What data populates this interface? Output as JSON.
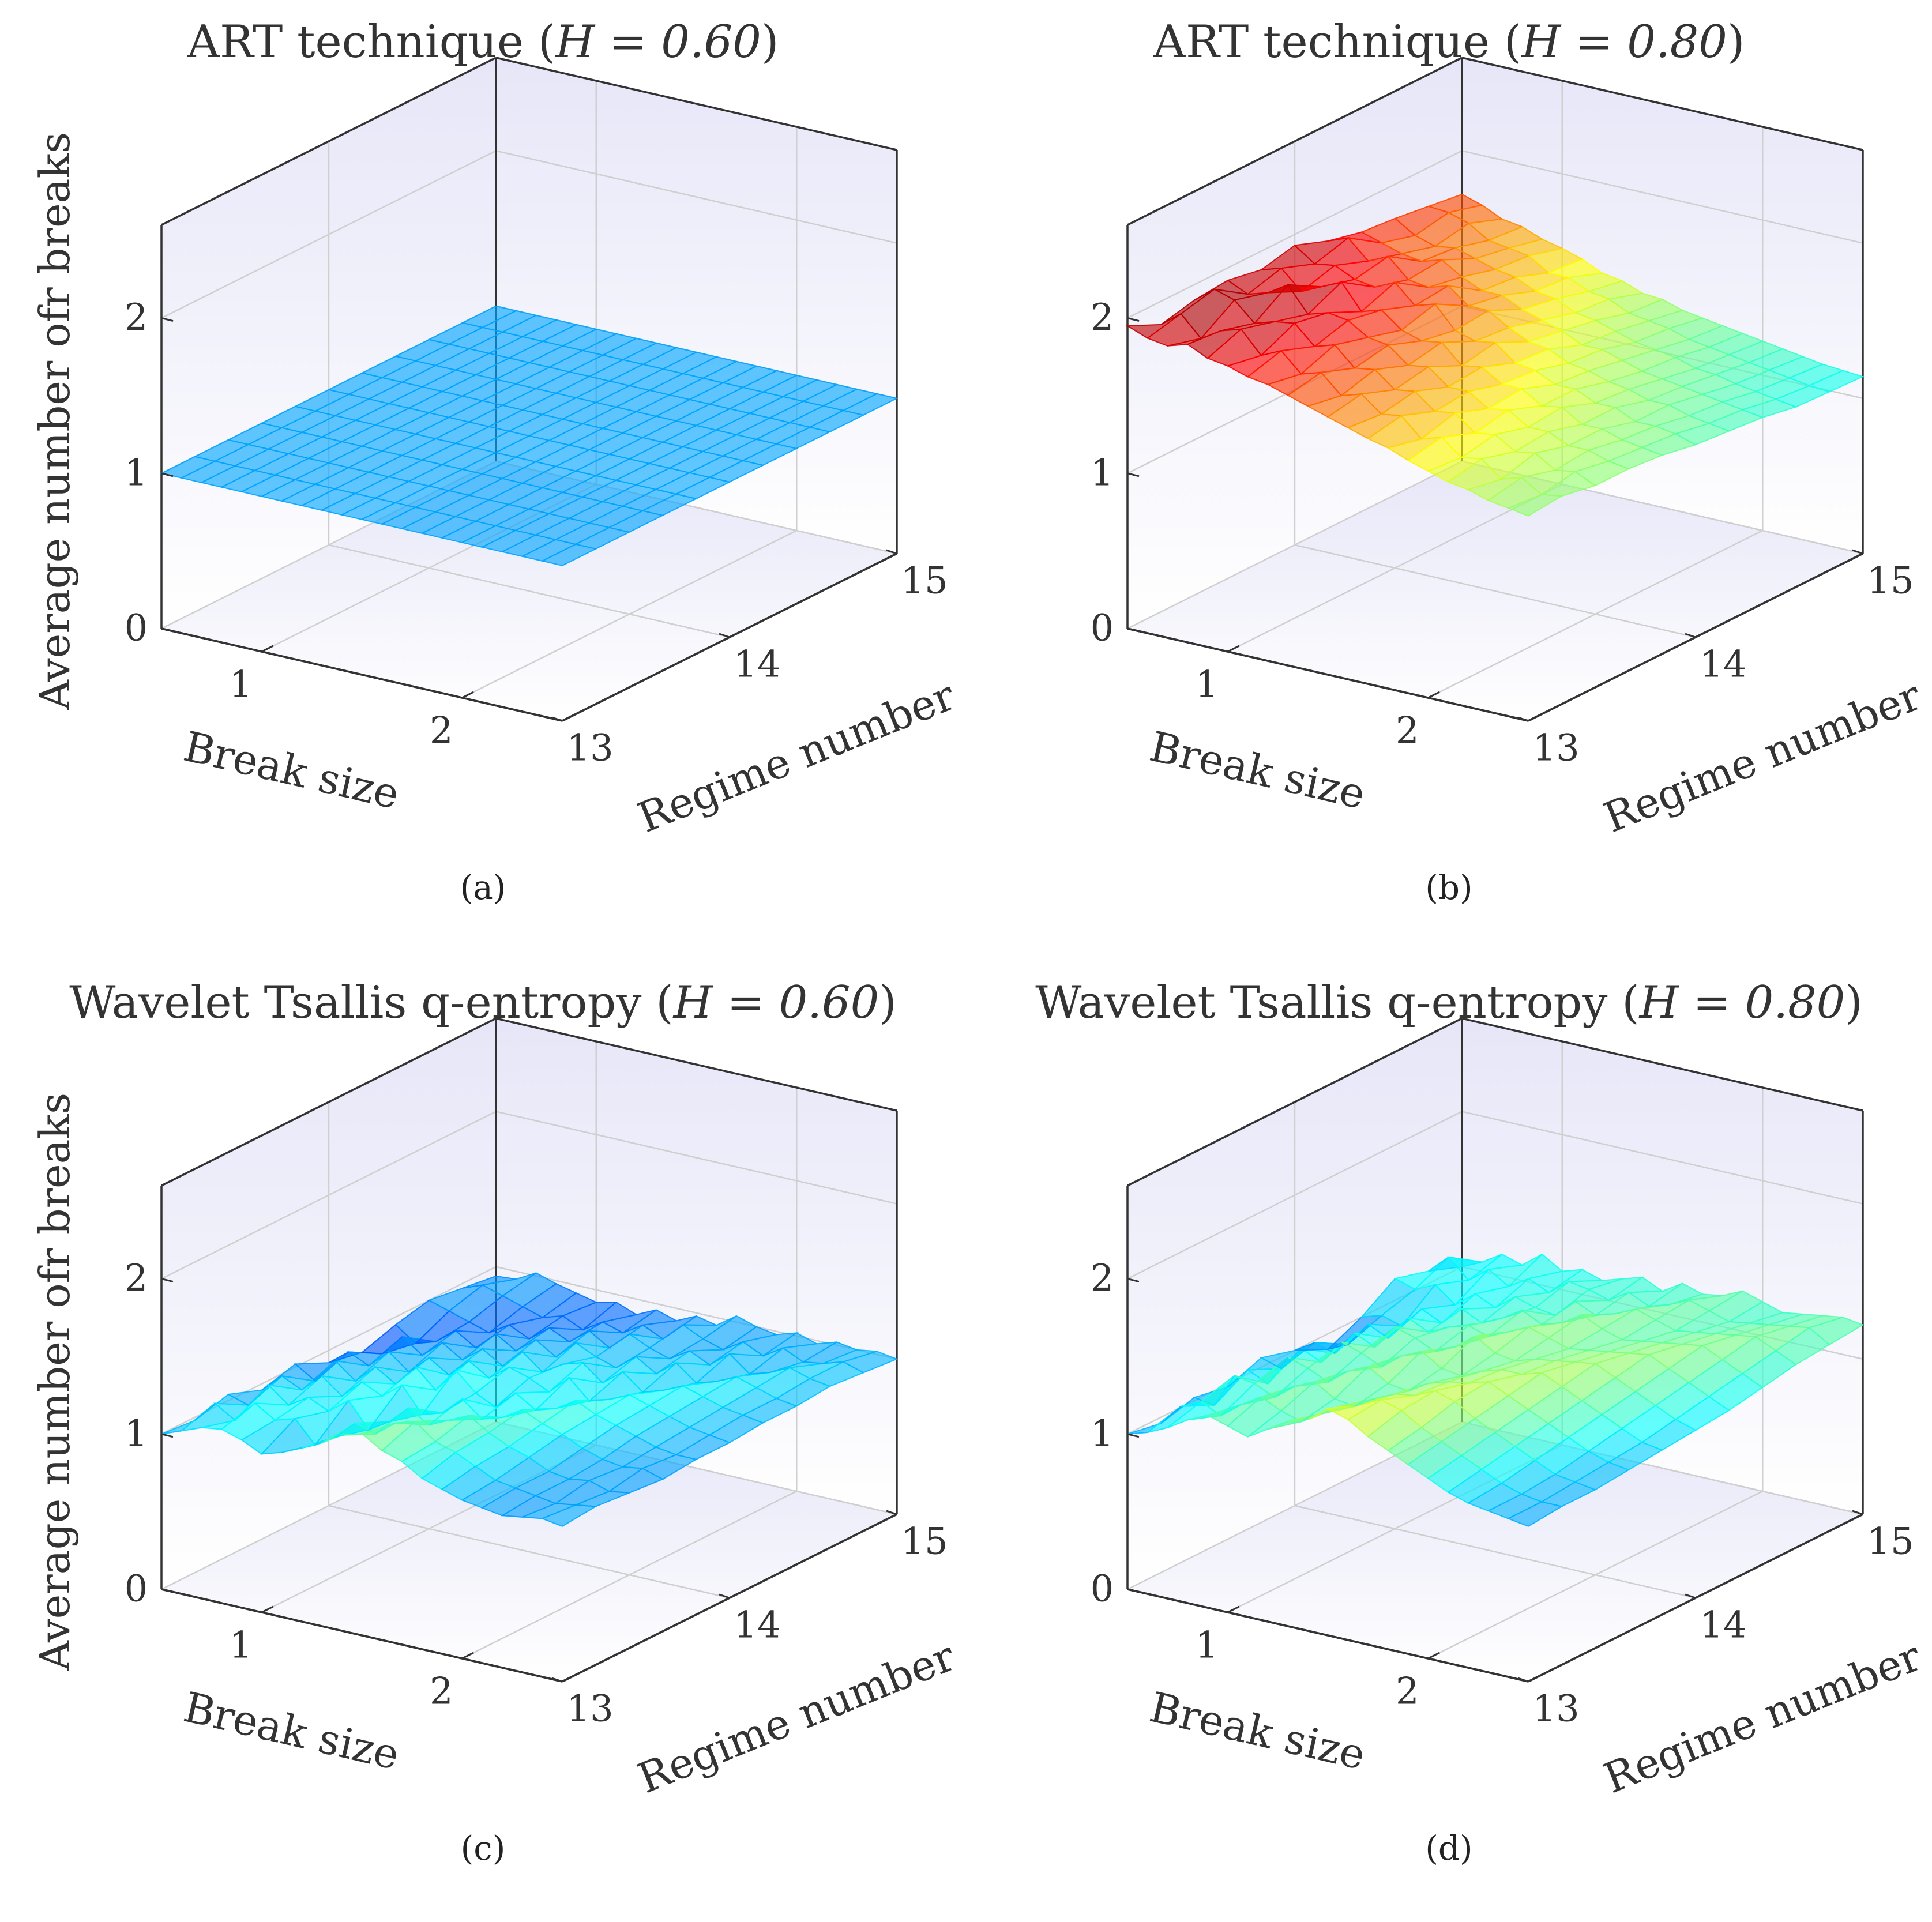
{
  "chart_data": [
    {
      "type": "surface",
      "panel": "(a)",
      "title": "ART technique",
      "title_param": "H = 0.60",
      "xlabel": "Break size",
      "ylabel": "Regime number",
      "zlabel": "Average number ofr breaks",
      "x_ticks": [
        "1",
        "2"
      ],
      "y_ticks": [
        "13",
        "14",
        "15"
      ],
      "z_ticks": [
        "0",
        "1",
        "2"
      ],
      "xlim": [
        0.5,
        2.5
      ],
      "ylim": [
        13,
        15
      ],
      "zlim": [
        0,
        2.6
      ],
      "surface_x_range": [
        0.5,
        2.5
      ],
      "surface_y_range": [
        13,
        15
      ],
      "grid": true,
      "colormap": "jet",
      "color_range": [
        0.6,
        2.0
      ],
      "values": [
        [
          1,
          1,
          1,
          1,
          1,
          1,
          1,
          1,
          1,
          1,
          1
        ],
        [
          1,
          1,
          1,
          1,
          1,
          1,
          1,
          1,
          1,
          1,
          1
        ],
        [
          1,
          1,
          1,
          1,
          1,
          1,
          1,
          1,
          1,
          1,
          1
        ],
        [
          1,
          1,
          1,
          1,
          1,
          1,
          1,
          1,
          1,
          1,
          1
        ],
        [
          1,
          1,
          1,
          1,
          1,
          1,
          1,
          1,
          1,
          1,
          1
        ],
        [
          1,
          1,
          1,
          1,
          1,
          1,
          1,
          1,
          1,
          1,
          1
        ],
        [
          1,
          1,
          1,
          1,
          1,
          1,
          1,
          1,
          1,
          1,
          1
        ],
        [
          1,
          1,
          1,
          1,
          1,
          1,
          1,
          1,
          1,
          1,
          1
        ],
        [
          1,
          1,
          1,
          1,
          1,
          1,
          1,
          1,
          1,
          1,
          1
        ],
        [
          1,
          1,
          1,
          1,
          1,
          1,
          1,
          1,
          1,
          1,
          1
        ],
        [
          1,
          1,
          1,
          1,
          1,
          1,
          1,
          1,
          1,
          1,
          1
        ],
        [
          1,
          1,
          1,
          1,
          1,
          1,
          1,
          1,
          1,
          1,
          1
        ],
        [
          1,
          1,
          1,
          1,
          1,
          1,
          1,
          1,
          1,
          1,
          1
        ],
        [
          1,
          1,
          1,
          1,
          1,
          1,
          1,
          1,
          1,
          1,
          1
        ],
        [
          1,
          1,
          1,
          1,
          1,
          1,
          1,
          1,
          1,
          1,
          1
        ],
        [
          1,
          1,
          1,
          1,
          1,
          1,
          1,
          1,
          1,
          1,
          1
        ],
        [
          1,
          1,
          1,
          1,
          1,
          1,
          1,
          1,
          1,
          1,
          1
        ],
        [
          1,
          1,
          1,
          1,
          1,
          1,
          1,
          1,
          1,
          1,
          1
        ],
        [
          1,
          1,
          1,
          1,
          1,
          1,
          1,
          1,
          1,
          1,
          1
        ],
        [
          1,
          1,
          1,
          1,
          1,
          1,
          1,
          1,
          1,
          1,
          1
        ],
        [
          1,
          1,
          1,
          1,
          1,
          1,
          1,
          1,
          1,
          1,
          1
        ]
      ]
    },
    {
      "type": "surface",
      "panel": "(b)",
      "title": "ART technique",
      "title_param": "H = 0.80",
      "xlabel": "Break size",
      "ylabel": "Regime number",
      "zlabel": "",
      "x_ticks": [
        "1",
        "2"
      ],
      "y_ticks": [
        "13",
        "14",
        "15"
      ],
      "z_ticks": [
        "0",
        "1",
        "2"
      ],
      "xlim": [
        0.5,
        2.5
      ],
      "ylim": [
        13,
        15
      ],
      "zlim": [
        0,
        2.6
      ],
      "surface_x_range": [
        0.5,
        2.5
      ],
      "surface_y_range": [
        13,
        15
      ],
      "grid": true,
      "colormap": "jet",
      "color_range": [
        0.6,
        2.0
      ],
      "values": [
        [
          1.95,
          1.85,
          1.9,
          1.92,
          1.88,
          1.93,
          1.85,
          1.8,
          1.78,
          1.75,
          1.72
        ],
        [
          1.9,
          1.95,
          2.0,
          1.86,
          1.92,
          1.84,
          1.9,
          1.76,
          1.7,
          1.74,
          1.68
        ],
        [
          1.88,
          1.82,
          1.96,
          1.9,
          1.8,
          1.86,
          1.78,
          1.72,
          1.66,
          1.7,
          1.62
        ],
        [
          1.92,
          1.9,
          1.84,
          1.98,
          1.86,
          1.8,
          1.84,
          1.7,
          1.68,
          1.62,
          1.6
        ],
        [
          1.86,
          1.94,
          1.88,
          1.82,
          1.92,
          1.78,
          1.72,
          1.74,
          1.64,
          1.6,
          1.55
        ],
        [
          1.84,
          1.8,
          1.9,
          1.86,
          1.76,
          1.84,
          1.7,
          1.66,
          1.6,
          1.58,
          1.52
        ],
        [
          1.8,
          1.86,
          1.78,
          1.84,
          1.8,
          1.72,
          1.74,
          1.6,
          1.58,
          1.5,
          1.48
        ],
        [
          1.78,
          1.74,
          1.82,
          1.76,
          1.7,
          1.76,
          1.64,
          1.6,
          1.52,
          1.5,
          1.42
        ],
        [
          1.74,
          1.78,
          1.7,
          1.74,
          1.66,
          1.62,
          1.64,
          1.54,
          1.5,
          1.44,
          1.4
        ],
        [
          1.7,
          1.66,
          1.72,
          1.64,
          1.68,
          1.58,
          1.56,
          1.5,
          1.44,
          1.42,
          1.35
        ],
        [
          1.66,
          1.7,
          1.62,
          1.66,
          1.56,
          1.6,
          1.5,
          1.46,
          1.42,
          1.36,
          1.34
        ],
        [
          1.62,
          1.6,
          1.64,
          1.56,
          1.58,
          1.5,
          1.48,
          1.4,
          1.38,
          1.34,
          1.3
        ],
        [
          1.58,
          1.62,
          1.54,
          1.56,
          1.5,
          1.48,
          1.42,
          1.4,
          1.34,
          1.32,
          1.28
        ],
        [
          1.55,
          1.5,
          1.56,
          1.48,
          1.5,
          1.42,
          1.4,
          1.36,
          1.32,
          1.28,
          1.26
        ],
        [
          1.5,
          1.54,
          1.46,
          1.5,
          1.42,
          1.42,
          1.36,
          1.32,
          1.3,
          1.26,
          1.24
        ],
        [
          1.46,
          1.44,
          1.48,
          1.42,
          1.44,
          1.36,
          1.34,
          1.3,
          1.26,
          1.24,
          1.22
        ],
        [
          1.42,
          1.46,
          1.4,
          1.42,
          1.36,
          1.36,
          1.3,
          1.28,
          1.25,
          1.22,
          1.2
        ],
        [
          1.4,
          1.36,
          1.42,
          1.36,
          1.36,
          1.3,
          1.3,
          1.26,
          1.22,
          1.2,
          1.18
        ],
        [
          1.36,
          1.4,
          1.34,
          1.36,
          1.32,
          1.3,
          1.26,
          1.24,
          1.2,
          1.18,
          1.16
        ],
        [
          1.34,
          1.32,
          1.36,
          1.32,
          1.3,
          1.28,
          1.24,
          1.22,
          1.18,
          1.16,
          1.15
        ],
        [
          1.32,
          1.34,
          1.3,
          1.3,
          1.28,
          1.24,
          1.22,
          1.2,
          1.16,
          1.15,
          1.14
        ]
      ]
    },
    {
      "type": "surface",
      "panel": "(c)",
      "title": "Wavelet Tsallis q-entropy",
      "title_param": "H = 0.60",
      "xlabel": "Break size",
      "ylabel": "Regime number",
      "zlabel": "Average number ofr breaks",
      "x_ticks": [
        "1",
        "2"
      ],
      "y_ticks": [
        "13",
        "14",
        "15"
      ],
      "z_ticks": [
        "0",
        "1",
        "2"
      ],
      "xlim": [
        0.5,
        2.5
      ],
      "ylim": [
        13,
        15
      ],
      "zlim": [
        0,
        2.6
      ],
      "surface_x_range": [
        0.5,
        2.5
      ],
      "surface_y_range": [
        13,
        15
      ],
      "grid": true,
      "colormap": "jet",
      "color_range": [
        0.6,
        2.0
      ],
      "values": [
        [
          1.0,
          0.98,
          1.04,
          0.96,
          1.02,
          0.92,
          0.88,
          0.95,
          1.0,
          0.97,
          0.94
        ],
        [
          1.05,
          1.12,
          1.0,
          1.08,
          0.94,
          1.02,
          0.9,
          0.86,
          0.96,
          1.02,
          0.95
        ],
        [
          1.1,
          1.04,
          1.16,
          1.02,
          1.1,
          0.96,
          1.04,
          0.9,
          0.92,
          0.98,
          1.02
        ],
        [
          1.12,
          1.18,
          1.06,
          1.14,
          1.0,
          1.08,
          0.95,
          1.0,
          0.88,
          0.94,
          0.98
        ],
        [
          1.08,
          1.1,
          1.14,
          1.04,
          1.12,
          0.98,
          1.06,
          0.92,
          0.96,
          0.9,
          0.95
        ],
        [
          1.02,
          1.14,
          1.08,
          1.16,
          1.04,
          1.1,
          0.98,
          1.04,
          0.9,
          0.94,
          0.92
        ],
        [
          1.06,
          1.0,
          1.18,
          1.1,
          1.18,
          1.02,
          1.08,
          0.96,
          1.0,
          0.88,
          0.95
        ],
        [
          1.12,
          1.08,
          1.02,
          1.2,
          1.06,
          1.14,
          1.0,
          1.06,
          0.94,
          0.96,
          0.9
        ],
        [
          1.18,
          1.2,
          1.1,
          1.04,
          1.22,
          1.06,
          1.12,
          0.98,
          1.04,
          0.92,
          0.96
        ],
        [
          1.26,
          1.16,
          1.22,
          1.08,
          1.1,
          1.16,
          1.02,
          1.1,
          0.96,
          1.0,
          0.92
        ],
        [
          1.3,
          1.26,
          1.14,
          1.2,
          1.04,
          1.12,
          1.1,
          1.04,
          1.08,
          0.94,
          0.98
        ],
        [
          1.22,
          1.3,
          1.2,
          1.1,
          1.16,
          1.06,
          1.14,
          1.0,
          1.02,
          1.06,
          0.95
        ],
        [
          1.18,
          1.2,
          1.26,
          1.14,
          1.08,
          1.18,
          1.04,
          1.1,
          0.98,
          1.0,
          1.04
        ],
        [
          1.1,
          1.16,
          1.18,
          1.22,
          1.12,
          1.06,
          1.14,
          1.02,
          1.06,
          0.96,
          1.0
        ],
        [
          1.06,
          1.1,
          1.12,
          1.16,
          1.2,
          1.1,
          1.04,
          1.12,
          1.0,
          1.04,
          0.98
        ],
        [
          1.02,
          1.04,
          1.08,
          1.12,
          1.14,
          1.16,
          1.08,
          1.02,
          1.1,
          0.98,
          1.02
        ],
        [
          1.0,
          1.02,
          1.02,
          1.06,
          1.1,
          1.12,
          1.14,
          1.06,
          1.0,
          1.06,
          0.98
        ],
        [
          0.98,
          1.0,
          1.0,
          1.02,
          1.06,
          1.08,
          1.1,
          1.12,
          1.04,
          1.0,
          1.02
        ],
        [
          1.0,
          0.98,
          1.02,
          1.0,
          1.02,
          1.04,
          1.06,
          1.08,
          1.1,
          1.02,
          1.0
        ],
        [
          1.02,
          1.0,
          0.98,
          1.02,
          1.0,
          1.02,
          1.04,
          1.04,
          1.06,
          1.06,
          1.02
        ],
        [
          1.0,
          1.02,
          1.0,
          0.98,
          1.0,
          1.0,
          1.02,
          1.02,
          1.04,
          1.02,
          1.0
        ]
      ]
    },
    {
      "type": "surface",
      "panel": "(d)",
      "title": "Wavelet Tsallis q-entropy",
      "title_param": "H = 0.80",
      "xlabel": "Break size",
      "ylabel": "Regime number",
      "zlabel": "",
      "x_ticks": [
        "1",
        "2"
      ],
      "y_ticks": [
        "13",
        "14",
        "15"
      ],
      "z_ticks": [
        "0",
        "1",
        "2"
      ],
      "xlim": [
        0.5,
        2.5
      ],
      "ylim": [
        13,
        15
      ],
      "zlim": [
        0,
        2.6
      ],
      "surface_x_range": [
        0.5,
        2.5
      ],
      "surface_y_range": [
        13,
        15
      ],
      "grid": true,
      "colormap": "jet",
      "color_range": [
        0.6,
        2.0
      ],
      "values": [
        [
          1.0,
          0.96,
          1.02,
          0.98,
          1.06,
          1.0,
          0.9,
          1.0,
          1.14,
          1.08,
          1.0
        ],
        [
          1.04,
          1.1,
          1.0,
          1.12,
          1.02,
          1.08,
          0.96,
          1.04,
          1.1,
          1.2,
          1.06
        ],
        [
          1.1,
          1.16,
          1.22,
          1.06,
          1.18,
          1.04,
          1.12,
          1.0,
          1.16,
          1.08,
          1.14
        ],
        [
          1.18,
          1.1,
          1.2,
          1.26,
          1.12,
          1.2,
          1.06,
          1.14,
          1.06,
          1.18,
          1.1
        ],
        [
          1.24,
          1.2,
          1.14,
          1.22,
          1.28,
          1.14,
          1.22,
          1.08,
          1.16,
          1.1,
          1.2
        ],
        [
          1.2,
          1.28,
          1.24,
          1.16,
          1.24,
          1.3,
          1.16,
          1.2,
          1.1,
          1.18,
          1.12
        ],
        [
          1.16,
          1.22,
          1.3,
          1.26,
          1.18,
          1.26,
          1.22,
          1.14,
          1.2,
          1.12,
          1.16
        ],
        [
          1.24,
          1.18,
          1.22,
          1.32,
          1.28,
          1.2,
          1.26,
          1.2,
          1.16,
          1.22,
          1.12
        ],
        [
          1.32,
          1.26,
          1.2,
          1.24,
          1.34,
          1.26,
          1.22,
          1.28,
          1.14,
          1.2,
          1.16
        ],
        [
          1.36,
          1.34,
          1.28,
          1.22,
          1.26,
          1.36,
          1.28,
          1.22,
          1.26,
          1.16,
          1.2
        ],
        [
          1.46,
          1.38,
          1.34,
          1.3,
          1.24,
          1.28,
          1.34,
          1.26,
          1.2,
          1.24,
          1.14
        ],
        [
          1.42,
          1.44,
          1.36,
          1.34,
          1.3,
          1.26,
          1.3,
          1.34,
          1.24,
          1.18,
          1.22
        ],
        [
          1.34,
          1.4,
          1.42,
          1.36,
          1.34,
          1.3,
          1.26,
          1.28,
          1.3,
          1.22,
          1.18
        ],
        [
          1.28,
          1.32,
          1.38,
          1.4,
          1.34,
          1.32,
          1.28,
          1.24,
          1.26,
          1.28,
          1.2
        ],
        [
          1.22,
          1.26,
          1.3,
          1.34,
          1.38,
          1.34,
          1.3,
          1.26,
          1.22,
          1.24,
          1.26
        ],
        [
          1.16,
          1.2,
          1.24,
          1.28,
          1.32,
          1.36,
          1.32,
          1.28,
          1.24,
          1.2,
          1.22
        ],
        [
          1.1,
          1.14,
          1.18,
          1.22,
          1.26,
          1.3,
          1.34,
          1.3,
          1.26,
          1.22,
          1.18
        ],
        [
          1.06,
          1.08,
          1.12,
          1.16,
          1.2,
          1.24,
          1.28,
          1.32,
          1.28,
          1.24,
          1.2
        ],
        [
          1.04,
          1.04,
          1.06,
          1.1,
          1.14,
          1.18,
          1.22,
          1.26,
          1.3,
          1.26,
          1.22
        ],
        [
          1.02,
          1.02,
          1.04,
          1.06,
          1.08,
          1.12,
          1.16,
          1.2,
          1.24,
          1.28,
          1.24
        ],
        [
          1.0,
          1.02,
          1.02,
          1.04,
          1.06,
          1.08,
          1.1,
          1.14,
          1.18,
          1.2,
          1.22
        ]
      ]
    }
  ]
}
